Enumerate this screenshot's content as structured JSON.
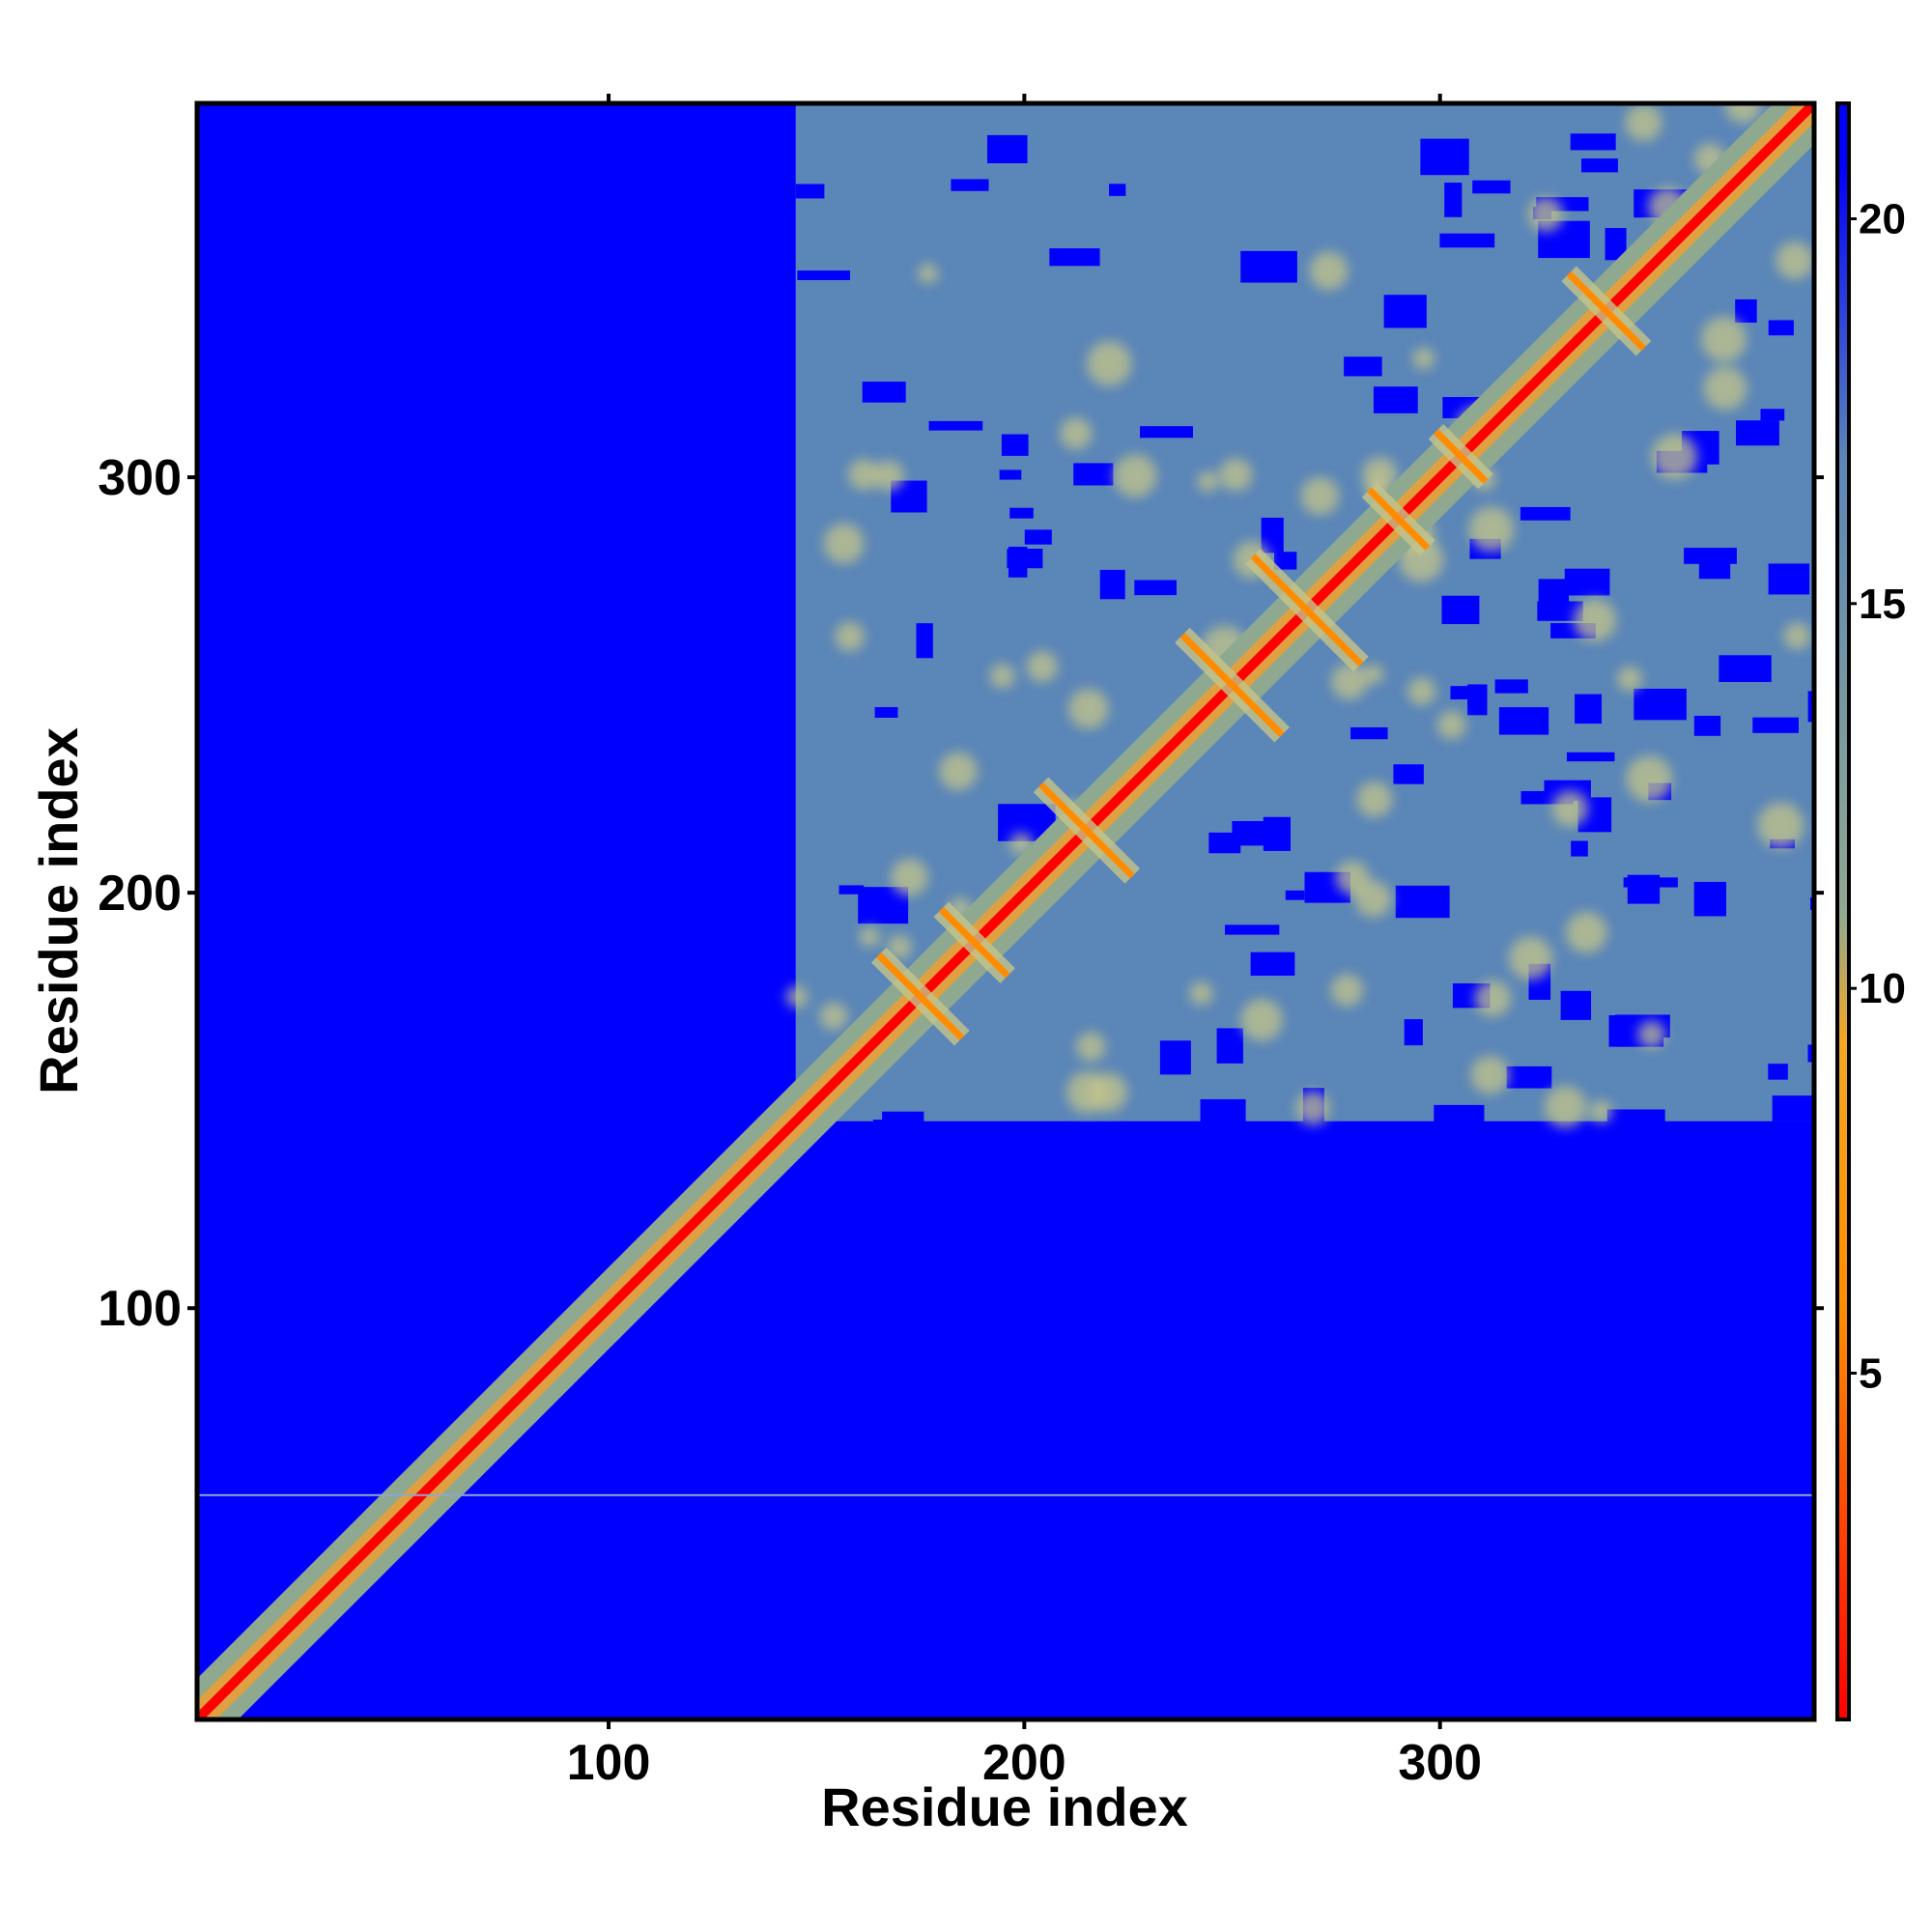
{
  "chart_data": {
    "type": "heatmap",
    "title": "",
    "xlabel": "Residue index",
    "ylabel": "Residue index",
    "xlim": [
      1,
      390
    ],
    "ylim": [
      1,
      390
    ],
    "x_ticks": [
      100,
      200,
      300
    ],
    "y_ticks": [
      100,
      200,
      300
    ],
    "top_ticks": [
      100,
      200,
      300
    ],
    "right_ticks": [
      100,
      200,
      300
    ],
    "colorbar": {
      "range": [
        0.5,
        21.5
      ],
      "ticks": [
        5,
        10,
        15,
        20
      ],
      "colors": [
        "#ff0000",
        "#ff8c00",
        "#f5a623",
        "#8fa890",
        "#5b86b8",
        "#0000ff"
      ],
      "stops": [
        0,
        0.25,
        0.42,
        0.5,
        0.78,
        0.96
      ]
    },
    "colors": {
      "background_cell": "#0000ff",
      "interaction_field": "#5b86b8",
      "moderate_contact": "#c5c58a",
      "close_contact": "#ff8c00",
      "diagonal": "#ff0000"
    },
    "regions": {
      "diagonal": {
        "from": 1,
        "to": 390
      },
      "structured_block": {
        "x_range": [
          145,
          390
        ],
        "y_range": [
          145,
          390
        ]
      },
      "anti_diagonal_contacts": [
        {
          "center": 175,
          "half_length": 10
        },
        {
          "center": 188,
          "half_length": 8
        },
        {
          "center": 215,
          "half_length": 11
        },
        {
          "center": 250,
          "half_length": 12
        },
        {
          "center": 268,
          "half_length": 13
        },
        {
          "center": 290,
          "half_length": 7
        },
        {
          "center": 305,
          "half_length": 6
        },
        {
          "center": 340,
          "half_length": 9
        }
      ]
    }
  }
}
